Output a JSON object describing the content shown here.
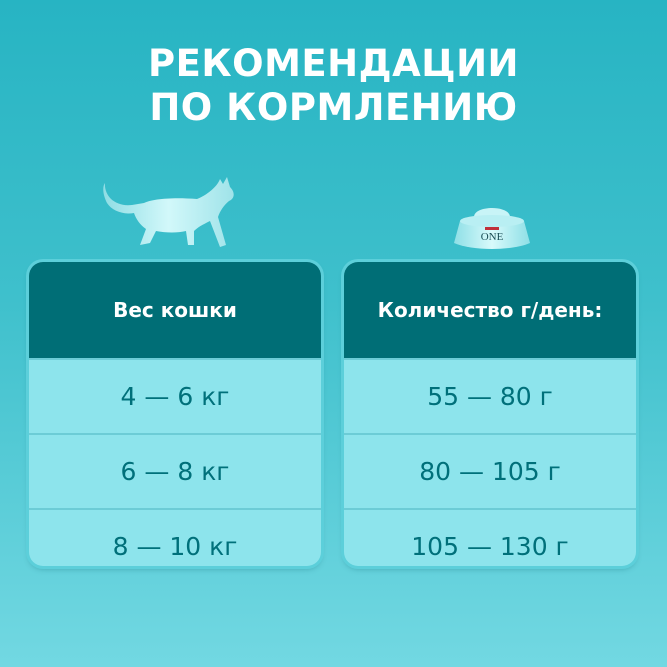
{
  "title": {
    "line1": "РЕКОМЕНДАЦИИ",
    "line2": "ПО КОРМЛЕНИЮ"
  },
  "icons": {
    "cat": "cat-silhouette-icon",
    "bowl": "food-bowl-icon",
    "bowl_logo": "PURINA ONE"
  },
  "weight_table": {
    "header": "Вес кошки",
    "rows": [
      "4 — 6 кг",
      "6 — 8 кг",
      "8 — 10 кг"
    ]
  },
  "amount_table": {
    "header": "Количество г/день:",
    "rows": [
      "55 — 80 г",
      "80 — 105 г",
      "105 — 130 г"
    ]
  },
  "colors": {
    "header": "#006e76",
    "cell": "#8de4ec",
    "cell_text": "#00707a",
    "background": "#3fc0cc"
  }
}
